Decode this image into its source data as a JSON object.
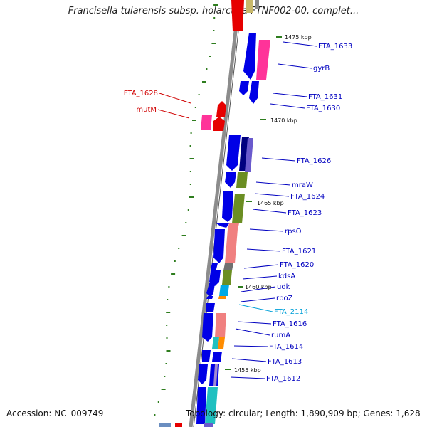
{
  "title": "Francisella tularensis subsp. holarctica FTNF002-00, complet...",
  "accession": "Accession: NC_009749",
  "topology": "Topology: circular; Length: 1,890,909 bp; Genes: 1,628",
  "colors": {
    "backbone": "#8c8c8c",
    "forward_cds": "#0000e6",
    "reverse_cds": "#e60000",
    "pink": "#ff3399",
    "salmon": "#f08080",
    "olive": "#6b8e23",
    "cyan": "#00aae6",
    "turquoise": "#20c0c0",
    "orange": "#ff8c00",
    "navy": "#000080",
    "purple": "#6a5acd",
    "grey": "#707070",
    "tick": "#2e7d1e",
    "label_fwd": "#0000c0",
    "label_rev": "#d00000",
    "label_cyan": "#00a0d8"
  },
  "kbp_labels": [
    "1475 kbp",
    "1470 kbp",
    "1465 kbp",
    "1460 kbp",
    "1455 kbp"
  ],
  "gene_labels": {
    "right": [
      {
        "text": "FTA_1633",
        "color": "fwd"
      },
      {
        "text": "gyrB",
        "color": "fwd"
      },
      {
        "text": "FTA_1631",
        "color": "fwd"
      },
      {
        "text": "FTA_1630",
        "color": "fwd"
      },
      {
        "text": "FTA_1626",
        "color": "fwd"
      },
      {
        "text": "mraW",
        "color": "fwd"
      },
      {
        "text": "FTA_1624",
        "color": "fwd"
      },
      {
        "text": "FTA_1623",
        "color": "fwd"
      },
      {
        "text": "rpsO",
        "color": "fwd"
      },
      {
        "text": "FTA_1621",
        "color": "fwd"
      },
      {
        "text": "FTA_1620",
        "color": "fwd"
      },
      {
        "text": "kdsA",
        "color": "fwd"
      },
      {
        "text": "udk",
        "color": "fwd"
      },
      {
        "text": "rpoZ",
        "color": "fwd"
      },
      {
        "text": "FTA_2114",
        "color": "cyan"
      },
      {
        "text": "FTA_1616",
        "color": "fwd"
      },
      {
        "text": "rumA",
        "color": "fwd"
      },
      {
        "text": "FTA_1614",
        "color": "fwd"
      },
      {
        "text": "FTA_1613",
        "color": "fwd"
      },
      {
        "text": "FTA_1612",
        "color": "fwd"
      }
    ],
    "left": [
      {
        "text": "FTA_1628",
        "color": "rev"
      },
      {
        "text": "mutM",
        "color": "rev"
      }
    ]
  }
}
